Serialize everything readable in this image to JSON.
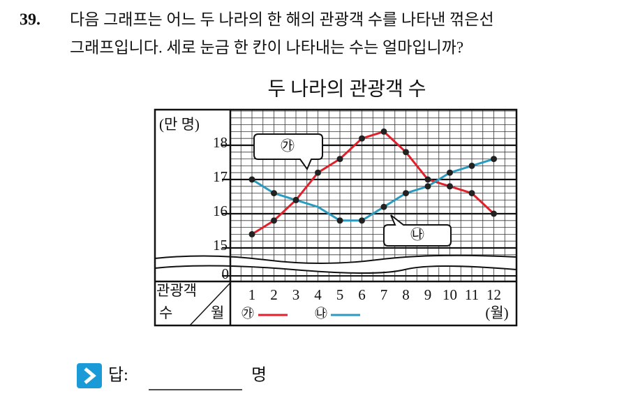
{
  "question": {
    "number": "39.",
    "lines": [
      "다음 그래프는 어느 두 나라의 한 해의 관광객 수를 나타낸 꺾은선",
      "그래프입니다. 세로 눈금 한 칸이 나타내는 수는 얼마입니까?"
    ]
  },
  "chart_data": {
    "type": "line",
    "title": "두 나라의 관광객 수",
    "y_unit": "(만 명)",
    "x_unit": "(월)",
    "row_header": [
      "관광객",
      "수",
      "월"
    ],
    "categories": [
      "1",
      "2",
      "3",
      "4",
      "5",
      "6",
      "7",
      "8",
      "9",
      "10",
      "11",
      "12"
    ],
    "series": [
      {
        "name": "㉮",
        "color": "#e0202a",
        "values": [
          15.4,
          15.8,
          16.4,
          17.2,
          17.6,
          18.2,
          18.4,
          17.8,
          17.0,
          16.8,
          16.6,
          16.0
        ]
      },
      {
        "name": "㉯",
        "color": "#2a9ac0",
        "values": [
          17.0,
          16.6,
          16.4,
          16.2,
          15.8,
          15.8,
          16.2,
          16.6,
          16.8,
          17.2,
          17.4,
          17.6
        ]
      }
    ],
    "ylim": [
      15,
      19
    ],
    "yticks": [
      15,
      16,
      17,
      18
    ],
    "break_tick": 0,
    "minor_step": 0.2,
    "grid": true
  },
  "answer": {
    "label": "답:",
    "unit": "명"
  }
}
